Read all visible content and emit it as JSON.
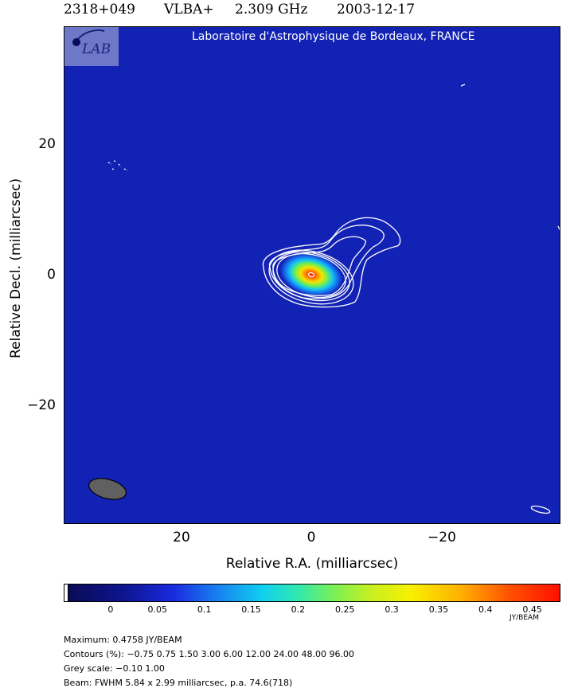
{
  "header": {
    "source": "2318+049",
    "array": "VLBA+",
    "frequency": "2.309 GHz",
    "date": "2003-12-17"
  },
  "logo": {
    "text": "LAB"
  },
  "institution": "Laboratoire d'Astrophysique de Bordeaux, FRANCE",
  "colors": {
    "background_map": "#1222b4",
    "contours": "#ffffff",
    "beam": "#606060"
  },
  "chart_data": {
    "type": "heatmap",
    "title": "2318+049 VLBA+ 2.309 GHz 2003-12-17",
    "xlabel": "Relative R.A. (milliarcsec)",
    "ylabel": "Relative Decl. (milliarcsec)",
    "x_ticks": [
      "20",
      "0",
      "−20"
    ],
    "y_ticks": [
      "20",
      "0",
      "−20"
    ],
    "xlim": [
      38,
      -38
    ],
    "ylim": [
      -38,
      38
    ],
    "peak": {
      "x": 0,
      "y": 0,
      "value": 0.4758
    },
    "colorbar": {
      "ticks": [
        "0",
        "0.05",
        "0.1",
        "0.15",
        "0.2",
        "0.25",
        "0.3",
        "0.35",
        "0.4",
        "0.45"
      ],
      "range": [
        -0.05,
        0.48
      ],
      "unit": "JY/BEAM"
    },
    "beam": {
      "fwhm_major": 5.84,
      "fwhm_minor": 2.99,
      "pa_deg": 74.6
    }
  },
  "info": {
    "maximum": "Maximum: 0.4758 JY/BEAM",
    "contours": "Contours (%): −0.75 0.75 1.50 3.00 6.00 12.00 24.00 48.00 96.00",
    "grey_scale": "Grey scale: −0.10 1.00",
    "beam": "Beam: FWHM 5.84 x 2.99 milliarcsec, p.a. 74.6(718)"
  }
}
